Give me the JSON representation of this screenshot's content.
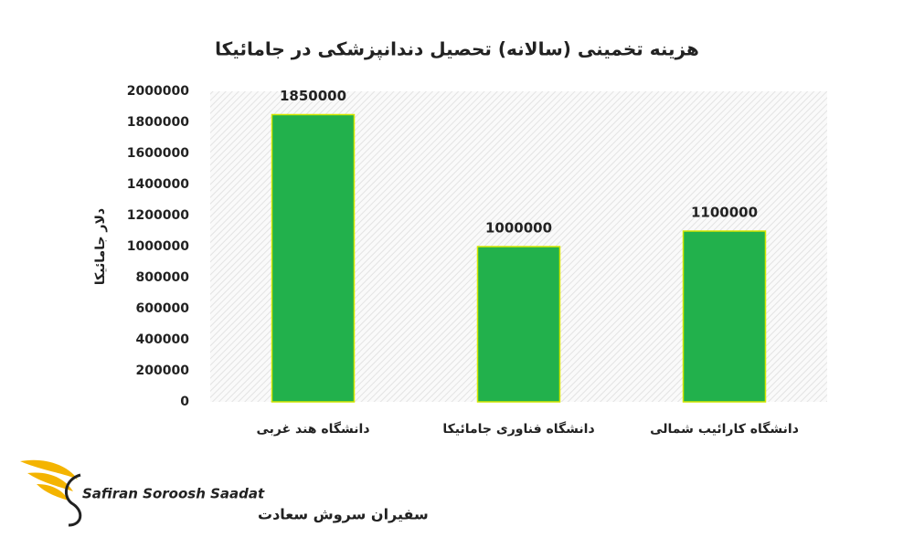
{
  "chart_data": {
    "type": "bar",
    "title": "هزینه تخمینی (سالانه) تحصیل دندانپزشکی در جامائیکا",
    "y_label": "دلار جامائیکا",
    "categories": [
      "دانشگاه هند غربی",
      "دانشگاه فناوری جامائیکا",
      "دانشگاه کارائیب شمالی"
    ],
    "values": [
      1850000,
      1000000,
      1100000
    ],
    "color": "#22b14c",
    "ylim": [
      0,
      2000000
    ],
    "yticks": [
      0,
      200000,
      400000,
      600000,
      800000,
      1000000,
      1200000,
      1400000,
      1600000,
      1800000,
      2000000
    ],
    "grid": false
  },
  "logo": {
    "text": "Safiran Soroosh Saadat",
    "subtext": "سفیران سروش سعادت"
  }
}
